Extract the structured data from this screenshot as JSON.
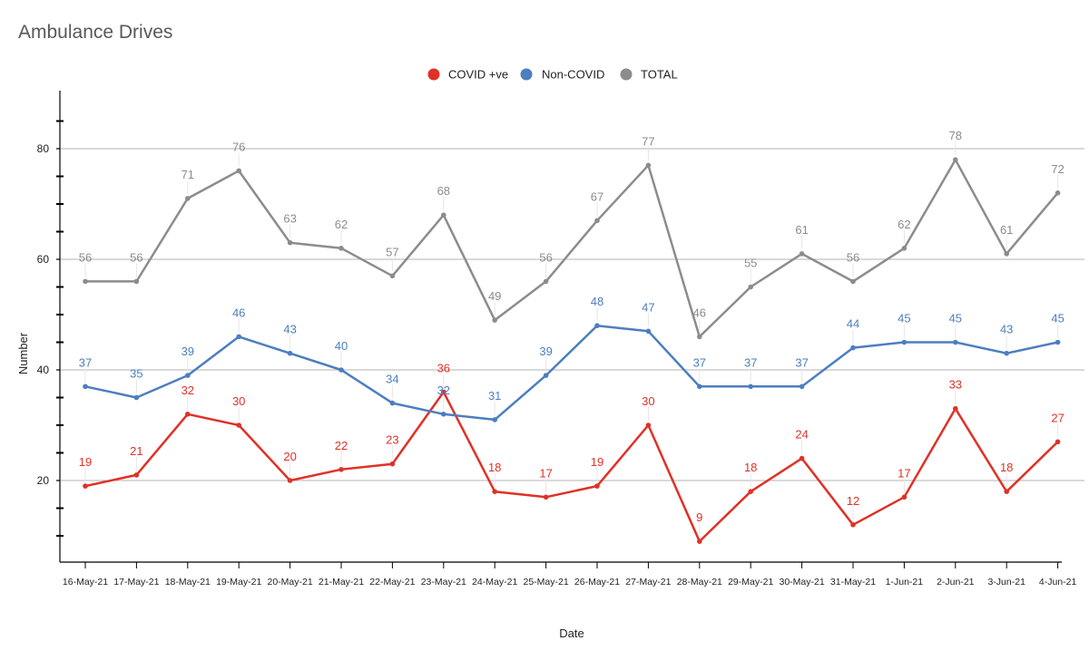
{
  "chart_data": {
    "type": "line",
    "title": "Ambulance Drives",
    "xlabel": "Date",
    "ylabel": "Number",
    "ylim": [
      5,
      90
    ],
    "yticks": [
      20,
      40,
      60,
      80
    ],
    "grid": true,
    "legend_position": "top-center",
    "categories": [
      "16-May-21",
      "17-May-21",
      "18-May-21",
      "19-May-21",
      "20-May-21",
      "21-May-21",
      "22-May-21",
      "23-May-21",
      "24-May-21",
      "25-May-21",
      "26-May-21",
      "27-May-21",
      "28-May-21",
      "29-May-21",
      "30-May-21",
      "31-May-21",
      "1-Jun-21",
      "2-Jun-21",
      "3-Jun-21",
      "4-Jun-21"
    ],
    "series": [
      {
        "name": "COVID +ve",
        "color": "#e03127",
        "values": [
          19,
          21,
          32,
          30,
          20,
          22,
          23,
          36,
          18,
          17,
          19,
          30,
          9,
          18,
          24,
          12,
          17,
          33,
          18,
          27
        ]
      },
      {
        "name": "Non-COVID",
        "color": "#4d7ebf",
        "values": [
          37,
          35,
          39,
          46,
          43,
          40,
          34,
          32,
          31,
          39,
          48,
          47,
          37,
          37,
          37,
          44,
          45,
          45,
          43,
          45
        ]
      },
      {
        "name": "TOTAL",
        "color": "#8c8c8c",
        "values": [
          56,
          56,
          71,
          76,
          63,
          62,
          57,
          68,
          49,
          56,
          67,
          77,
          46,
          55,
          61,
          56,
          62,
          78,
          61,
          72
        ]
      }
    ]
  }
}
